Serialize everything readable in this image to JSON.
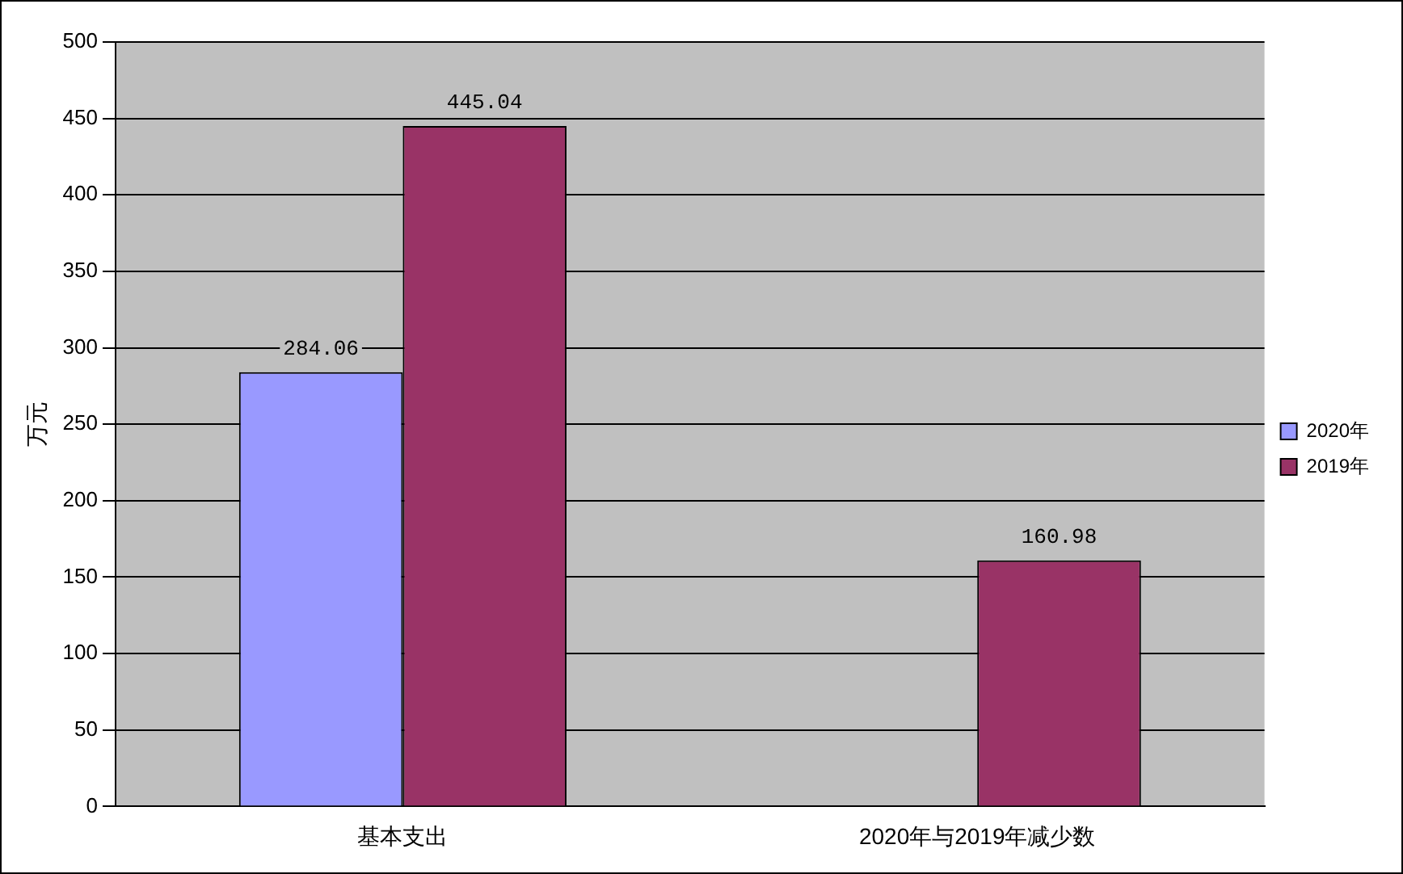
{
  "chart_data": {
    "type": "bar",
    "ylabel": "万元",
    "categories": [
      "基本支出",
      "2020年与2019年减少数"
    ],
    "series": [
      {
        "name": "2020年",
        "color": "#9999ff",
        "values": [
          284.06,
          null
        ]
      },
      {
        "name": "2019年",
        "color": "#993366",
        "values": [
          445.04,
          160.98
        ]
      }
    ],
    "ylim": [
      0,
      500
    ],
    "yticks": [
      0,
      50,
      100,
      150,
      200,
      250,
      300,
      350,
      400,
      450,
      500
    ],
    "grid": "y",
    "legend": "right",
    "data_labels": true
  }
}
